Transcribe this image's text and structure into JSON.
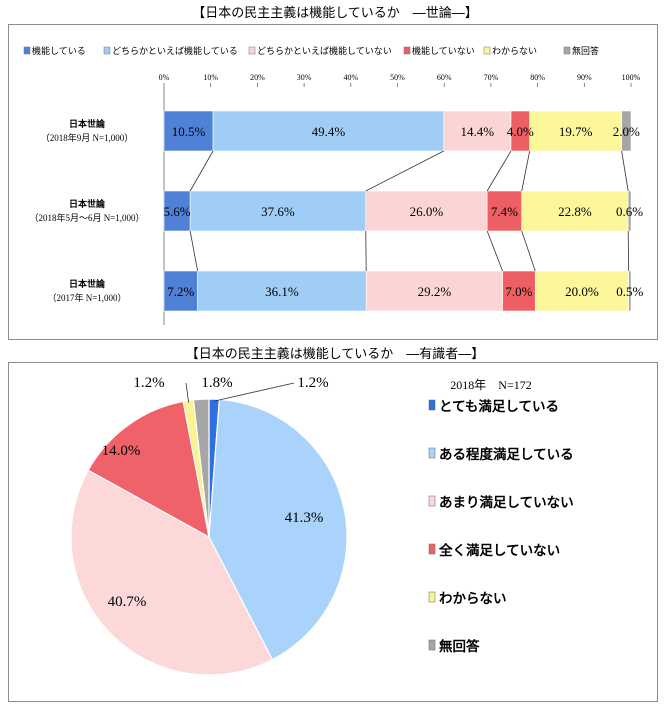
{
  "chart_data": [
    {
      "type": "bar",
      "orientation": "horizontal",
      "stacked": true,
      "title": "【日本の民主主義は機能しているか　―世論―】",
      "categories": [
        {
          "label": "日本世論",
          "sublabel": "（2018年9月 N=1,000）"
        },
        {
          "label": "日本世論",
          "sublabel": "（2018年5月～6月 N=1,000）"
        },
        {
          "label": "日本世論",
          "sublabel": "（2017年 N=1,000）"
        }
      ],
      "series": [
        {
          "name": "機能している",
          "color": "#4f81d6",
          "values": [
            10.5,
            5.6,
            7.2
          ],
          "labels": [
            "10.5%",
            "5.6%",
            "7.2%"
          ]
        },
        {
          "name": "どちらかといえば機能している",
          "color": "#9fcdf5",
          "values": [
            49.4,
            37.6,
            36.1
          ],
          "labels": [
            "49.4%",
            "37.6%",
            "36.1%"
          ]
        },
        {
          "name": "どちらかといえば機能していない",
          "color": "#fbd5d5",
          "values": [
            14.4,
            26.0,
            29.2
          ],
          "labels": [
            "14.4%",
            "26.0%",
            "29.2%"
          ]
        },
        {
          "name": "機能していない",
          "color": "#ee5e65",
          "values": [
            4.0,
            7.4,
            7.0
          ],
          "labels": [
            "4.0%",
            "7.4%",
            "7.0%"
          ]
        },
        {
          "name": "わからない",
          "color": "#fbf79a",
          "values": [
            19.7,
            22.8,
            20.0
          ],
          "labels": [
            "19.7%",
            "22.8%",
            "20.0%"
          ]
        },
        {
          "name": "無回答",
          "color": "#a6a6a6",
          "values": [
            2.0,
            0.6,
            0.5
          ],
          "labels": [
            "2.0%",
            "0.6%",
            "0.5%"
          ]
        }
      ],
      "xlim": [
        0,
        100
      ],
      "xticks": [
        "0%",
        "10%",
        "20%",
        "30%",
        "40%",
        "50%",
        "60%",
        "70%",
        "80%",
        "90%",
        "100%"
      ],
      "legend_position": "top",
      "series_lines": true
    },
    {
      "type": "pie",
      "title": "【日本の民主主義は機能しているか　―有識者―】",
      "annotation": "2018年　N=172",
      "slices": [
        {
          "name": "とても満足している",
          "value": 1.2,
          "label": "1.2%",
          "color": "#2f6fe0"
        },
        {
          "name": "ある程度満足している",
          "value": 41.3,
          "label": "41.3%",
          "color": "#a9d3fb"
        },
        {
          "name": "あまり満足していない",
          "value": 40.7,
          "label": "40.7%",
          "color": "#fcd8d8"
        },
        {
          "name": "全く満足していない",
          "value": 14.0,
          "label": "14.0%",
          "color": "#f06269"
        },
        {
          "name": "わからない",
          "value": 1.2,
          "label": "1.2%",
          "color": "#f9f392"
        },
        {
          "name": "無回答",
          "value": 1.8,
          "label": "1.8%",
          "color": "#a6a6a6"
        }
      ],
      "legend_position": "right"
    }
  ]
}
